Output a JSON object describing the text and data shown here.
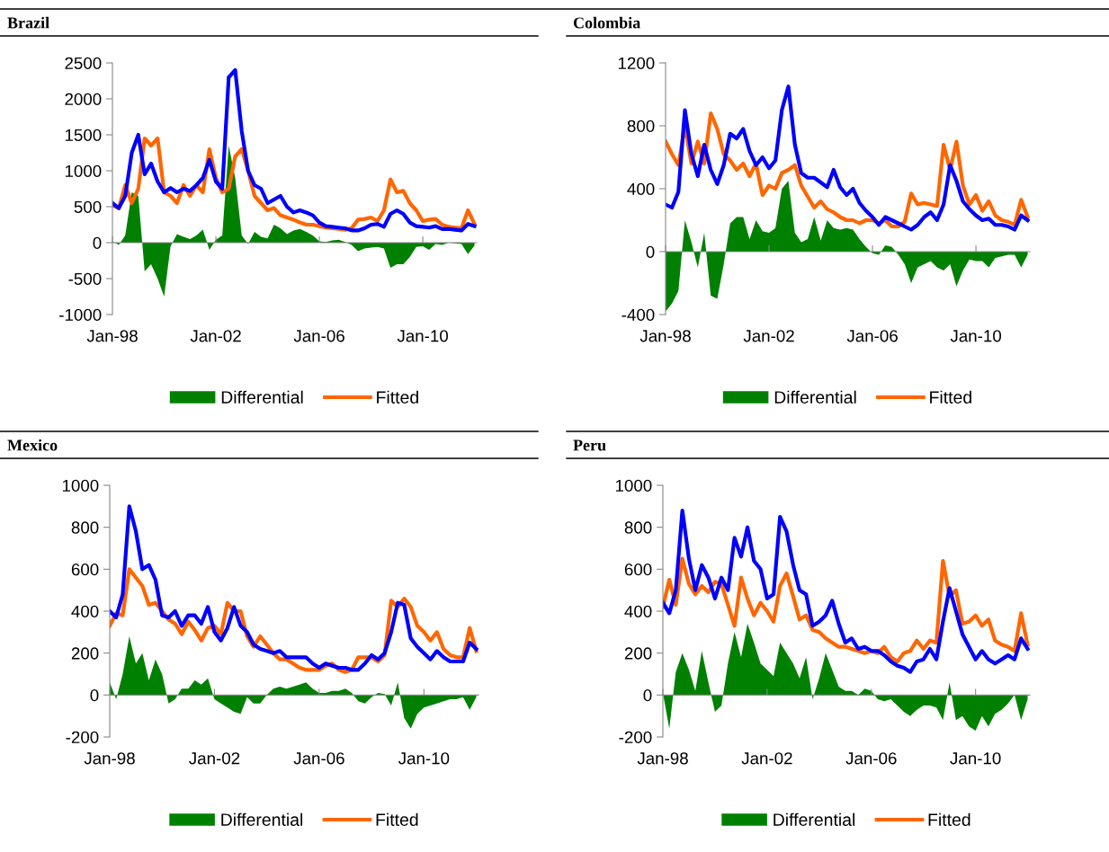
{
  "chart_data": [
    {
      "type": "line",
      "title": "Brazil",
      "x": [
        "1998-01",
        "1998-04",
        "1998-07",
        "1998-10",
        "1999-01",
        "1999-04",
        "1999-07",
        "1999-10",
        "2000-01",
        "2000-04",
        "2000-07",
        "2000-10",
        "2001-01",
        "2001-04",
        "2001-07",
        "2001-10",
        "2002-01",
        "2002-04",
        "2002-07",
        "2002-10",
        "2003-01",
        "2003-04",
        "2003-07",
        "2003-10",
        "2004-01",
        "2004-04",
        "2004-07",
        "2004-10",
        "2005-01",
        "2005-04",
        "2005-07",
        "2005-10",
        "2006-01",
        "2006-04",
        "2006-07",
        "2006-10",
        "2007-01",
        "2007-04",
        "2007-07",
        "2007-10",
        "2008-01",
        "2008-04",
        "2008-07",
        "2008-10",
        "2009-01",
        "2009-04",
        "2009-07",
        "2009-10",
        "2010-01",
        "2010-04",
        "2010-07",
        "2010-10",
        "2011-01",
        "2011-04",
        "2011-07",
        "2011-10",
        "2012-01"
      ],
      "xlim": [
        "1998-01",
        "2012-02"
      ],
      "xticks": [
        {
          "value": "1998-01",
          "label": "Jan-98"
        },
        {
          "value": "2002-01",
          "label": "Jan-02"
        },
        {
          "value": "2006-01",
          "label": "Jan-06"
        },
        {
          "value": "2010-01",
          "label": "Jan-10"
        }
      ],
      "ylim": [
        -1000,
        2500
      ],
      "yticks": [
        -1000,
        -500,
        0,
        500,
        1000,
        1500,
        2000,
        2500
      ],
      "legend": "bottom",
      "series": [
        {
          "name": "Differential",
          "type": "area",
          "color": "#008000",
          "values": [
            20,
            -30,
            100,
            700,
            650,
            -400,
            -300,
            -500,
            -750,
            -50,
            120,
            80,
            50,
            100,
            180,
            -100,
            40,
            100,
            1350,
            900,
            100,
            -20,
            150,
            80,
            60,
            250,
            200,
            120,
            170,
            190,
            150,
            100,
            20,
            10,
            30,
            40,
            10,
            -30,
            -120,
            -80,
            -70,
            -60,
            -80,
            -350,
            -300,
            -300,
            -200,
            -60,
            -50,
            -100,
            -20,
            -30,
            0,
            -10,
            -20,
            -160,
            -40
          ]
        },
        {
          "name": "Fitted",
          "color": "#ff6600",
          "values": [
            520,
            480,
            800,
            550,
            750,
            1450,
            1350,
            1450,
            700,
            650,
            550,
            800,
            650,
            800,
            700,
            1300,
            900,
            700,
            750,
            1200,
            1300,
            1000,
            650,
            550,
            450,
            480,
            380,
            350,
            320,
            280,
            250,
            250,
            230,
            210,
            200,
            190,
            180,
            200,
            320,
            330,
            350,
            300,
            450,
            880,
            700,
            720,
            550,
            450,
            300,
            320,
            330,
            250,
            220,
            210,
            200,
            450,
            260
          ]
        },
        {
          "color": "#0000ff",
          "values": [
            550,
            480,
            650,
            1250,
            1500,
            950,
            1100,
            850,
            700,
            760,
            700,
            750,
            720,
            800,
            900,
            1150,
            850,
            750,
            2300,
            2400,
            1550,
            1000,
            800,
            750,
            550,
            600,
            650,
            500,
            420,
            450,
            420,
            380,
            280,
            230,
            220,
            210,
            200,
            170,
            170,
            200,
            250,
            260,
            220,
            400,
            450,
            400,
            280,
            230,
            220,
            210,
            230,
            190,
            190,
            180,
            170,
            260,
            230
          ]
        }
      ]
    },
    {
      "type": "line",
      "title": "Colombia",
      "x": [
        "1998-01",
        "1998-04",
        "1998-07",
        "1998-10",
        "1999-01",
        "1999-04",
        "1999-07",
        "1999-10",
        "2000-01",
        "2000-04",
        "2000-07",
        "2000-10",
        "2001-01",
        "2001-04",
        "2001-07",
        "2001-10",
        "2002-01",
        "2002-04",
        "2002-07",
        "2002-10",
        "2003-01",
        "2003-04",
        "2003-07",
        "2003-10",
        "2004-01",
        "2004-04",
        "2004-07",
        "2004-10",
        "2005-01",
        "2005-04",
        "2005-07",
        "2005-10",
        "2006-01",
        "2006-04",
        "2006-07",
        "2006-10",
        "2007-01",
        "2007-04",
        "2007-07",
        "2007-10",
        "2008-01",
        "2008-04",
        "2008-07",
        "2008-10",
        "2009-01",
        "2009-04",
        "2009-07",
        "2009-10",
        "2010-01",
        "2010-04",
        "2010-07",
        "2010-10",
        "2011-01",
        "2011-04",
        "2011-07",
        "2011-10",
        "2012-01"
      ],
      "xlim": [
        "1998-01",
        "2012-02"
      ],
      "xticks": [
        {
          "value": "1998-01",
          "label": "Jan-98"
        },
        {
          "value": "2002-01",
          "label": "Jan-02"
        },
        {
          "value": "2006-01",
          "label": "Jan-06"
        },
        {
          "value": "2010-01",
          "label": "Jan-10"
        }
      ],
      "ylim": [
        -400,
        1200
      ],
      "yticks": [
        -400,
        0,
        400,
        800,
        1200
      ],
      "legend": "bottom",
      "series": [
        {
          "name": "Differential",
          "type": "area",
          "color": "#008000",
          "values": [
            -380,
            -330,
            -250,
            200,
            60,
            -100,
            120,
            -280,
            -300,
            -80,
            180,
            220,
            220,
            80,
            200,
            130,
            120,
            150,
            400,
            450,
            120,
            60,
            80,
            220,
            70,
            200,
            150,
            140,
            150,
            140,
            80,
            30,
            -10,
            -20,
            40,
            30,
            -20,
            -80,
            -200,
            -100,
            -80,
            -60,
            -100,
            -120,
            -80,
            -220,
            -120,
            -50,
            -60,
            -60,
            -100,
            -40,
            -30,
            -20,
            -20,
            -100,
            -20
          ]
        },
        {
          "name": "Fitted",
          "color": "#ff6600",
          "values": [
            700,
            620,
            550,
            800,
            560,
            700,
            560,
            880,
            780,
            620,
            580,
            520,
            560,
            480,
            560,
            360,
            420,
            400,
            500,
            520,
            550,
            420,
            350,
            280,
            320,
            270,
            250,
            220,
            200,
            200,
            180,
            200,
            200,
            180,
            200,
            160,
            160,
            190,
            370,
            300,
            310,
            300,
            290,
            680,
            520,
            700,
            420,
            300,
            360,
            260,
            320,
            230,
            200,
            190,
            170,
            330,
            220
          ]
        },
        {
          "color": "#0000ff",
          "values": [
            300,
            280,
            380,
            900,
            620,
            480,
            680,
            520,
            430,
            550,
            750,
            720,
            780,
            640,
            550,
            600,
            530,
            580,
            900,
            1050,
            680,
            500,
            470,
            470,
            440,
            410,
            520,
            410,
            360,
            400,
            310,
            260,
            220,
            170,
            220,
            200,
            180,
            160,
            140,
            170,
            220,
            250,
            200,
            300,
            550,
            450,
            320,
            270,
            230,
            200,
            210,
            170,
            170,
            160,
            140,
            230,
            200
          ]
        }
      ]
    },
    {
      "type": "line",
      "title": "Mexico",
      "x": [
        "1998-01",
        "1998-04",
        "1998-07",
        "1998-10",
        "1999-01",
        "1999-04",
        "1999-07",
        "1999-10",
        "2000-01",
        "2000-04",
        "2000-07",
        "2000-10",
        "2001-01",
        "2001-04",
        "2001-07",
        "2001-10",
        "2002-01",
        "2002-04",
        "2002-07",
        "2002-10",
        "2003-01",
        "2003-04",
        "2003-07",
        "2003-10",
        "2004-01",
        "2004-04",
        "2004-07",
        "2004-10",
        "2005-01",
        "2005-04",
        "2005-07",
        "2005-10",
        "2006-01",
        "2006-04",
        "2006-07",
        "2006-10",
        "2007-01",
        "2007-04",
        "2007-07",
        "2007-10",
        "2008-01",
        "2008-04",
        "2008-07",
        "2008-10",
        "2009-01",
        "2009-04",
        "2009-07",
        "2009-10",
        "2010-01",
        "2010-04",
        "2010-07",
        "2010-10",
        "2011-01",
        "2011-04",
        "2011-07",
        "2011-10",
        "2012-01"
      ],
      "xlim": [
        "1998-01",
        "2012-02"
      ],
      "xticks": [
        {
          "value": "1998-01",
          "label": "Jan-98"
        },
        {
          "value": "2002-01",
          "label": "Jan-02"
        },
        {
          "value": "2006-01",
          "label": "Jan-06"
        },
        {
          "value": "2010-01",
          "label": "Jan-10"
        }
      ],
      "ylim": [
        -200,
        1000
      ],
      "yticks": [
        -200,
        0,
        200,
        400,
        600,
        800,
        1000
      ],
      "legend": "bottom",
      "series": [
        {
          "name": "Differential",
          "type": "area",
          "color": "#008000",
          "values": [
            60,
            -20,
            100,
            280,
            150,
            200,
            70,
            170,
            100,
            -40,
            -20,
            30,
            30,
            70,
            50,
            80,
            -20,
            -40,
            -60,
            -80,
            -90,
            -10,
            -40,
            -40,
            0,
            30,
            40,
            30,
            40,
            50,
            60,
            30,
            10,
            10,
            20,
            20,
            30,
            10,
            -30,
            -40,
            -10,
            10,
            5,
            -50,
            60,
            -110,
            -160,
            -90,
            -60,
            -50,
            -40,
            -30,
            -20,
            -20,
            -10,
            -70,
            -10
          ]
        },
        {
          "name": "Fitted",
          "color": "#ff6600",
          "values": [
            330,
            390,
            380,
            600,
            560,
            520,
            430,
            440,
            400,
            360,
            340,
            290,
            350,
            310,
            260,
            320,
            330,
            290,
            440,
            400,
            400,
            280,
            230,
            280,
            240,
            200,
            170,
            170,
            150,
            130,
            120,
            120,
            120,
            140,
            150,
            120,
            110,
            120,
            180,
            180,
            180,
            160,
            190,
            450,
            420,
            460,
            420,
            330,
            300,
            260,
            300,
            220,
            190,
            180,
            180,
            320,
            210
          ]
        },
        {
          "color": "#0000ff",
          "values": [
            400,
            370,
            480,
            900,
            780,
            600,
            620,
            550,
            380,
            370,
            400,
            330,
            380,
            380,
            340,
            420,
            300,
            260,
            320,
            420,
            330,
            300,
            240,
            220,
            210,
            200,
            210,
            180,
            180,
            180,
            180,
            150,
            130,
            150,
            140,
            130,
            130,
            120,
            120,
            150,
            190,
            170,
            200,
            300,
            440,
            430,
            270,
            230,
            200,
            170,
            210,
            180,
            160,
            160,
            160,
            250,
            220
          ]
        }
      ]
    },
    {
      "type": "line",
      "title": "Peru",
      "x": [
        "1998-01",
        "1998-04",
        "1998-07",
        "1998-10",
        "1999-01",
        "1999-04",
        "1999-07",
        "1999-10",
        "2000-01",
        "2000-04",
        "2000-07",
        "2000-10",
        "2001-01",
        "2001-04",
        "2001-07",
        "2001-10",
        "2002-01",
        "2002-04",
        "2002-07",
        "2002-10",
        "2003-01",
        "2003-04",
        "2003-07",
        "2003-10",
        "2004-01",
        "2004-04",
        "2004-07",
        "2004-10",
        "2005-01",
        "2005-04",
        "2005-07",
        "2005-10",
        "2006-01",
        "2006-04",
        "2006-07",
        "2006-10",
        "2007-01",
        "2007-04",
        "2007-07",
        "2007-10",
        "2008-01",
        "2008-04",
        "2008-07",
        "2008-10",
        "2009-01",
        "2009-04",
        "2009-07",
        "2009-10",
        "2010-01",
        "2010-04",
        "2010-07",
        "2010-10",
        "2011-01",
        "2011-04",
        "2011-07",
        "2011-10",
        "2012-01"
      ],
      "xlim": [
        "1998-01",
        "2012-02"
      ],
      "xticks": [
        {
          "value": "1998-01",
          "label": "Jan-98"
        },
        {
          "value": "2002-01",
          "label": "Jan-02"
        },
        {
          "value": "2006-01",
          "label": "Jan-06"
        },
        {
          "value": "2010-01",
          "label": "Jan-10"
        }
      ],
      "ylim": [
        -200,
        1000
      ],
      "yticks": [
        -200,
        0,
        200,
        400,
        600,
        800,
        1000
      ],
      "legend": "bottom",
      "series": [
        {
          "name": "Differential",
          "type": "area",
          "color": "#008000",
          "values": [
            10,
            -160,
            110,
            200,
            120,
            20,
            210,
            60,
            -80,
            -50,
            150,
            300,
            180,
            340,
            250,
            150,
            120,
            90,
            250,
            200,
            150,
            80,
            180,
            -20,
            80,
            200,
            120,
            40,
            20,
            20,
            0,
            30,
            20,
            -20,
            -30,
            -20,
            -50,
            -80,
            -100,
            -70,
            -50,
            -50,
            -60,
            -120,
            60,
            -120,
            -100,
            -150,
            -170,
            -100,
            -150,
            -90,
            -70,
            -40,
            0,
            -120,
            -20
          ]
        },
        {
          "name": "Fitted",
          "color": "#ff6600",
          "values": [
            420,
            550,
            430,
            650,
            530,
            480,
            520,
            490,
            540,
            530,
            430,
            330,
            560,
            460,
            380,
            440,
            400,
            350,
            520,
            580,
            470,
            360,
            380,
            310,
            300,
            270,
            250,
            230,
            230,
            220,
            210,
            200,
            210,
            200,
            230,
            180,
            160,
            200,
            210,
            260,
            220,
            260,
            250,
            640,
            470,
            500,
            340,
            350,
            380,
            330,
            360,
            260,
            240,
            230,
            210,
            390,
            240
          ]
        },
        {
          "color": "#0000ff",
          "values": [
            440,
            390,
            500,
            880,
            650,
            500,
            620,
            560,
            460,
            560,
            500,
            750,
            660,
            800,
            640,
            600,
            460,
            480,
            850,
            780,
            620,
            500,
            480,
            330,
            350,
            380,
            450,
            340,
            250,
            270,
            220,
            230,
            210,
            210,
            190,
            160,
            140,
            130,
            110,
            160,
            170,
            220,
            170,
            350,
            510,
            400,
            290,
            230,
            170,
            210,
            170,
            150,
            170,
            190,
            170,
            270,
            220
          ]
        }
      ]
    }
  ]
}
